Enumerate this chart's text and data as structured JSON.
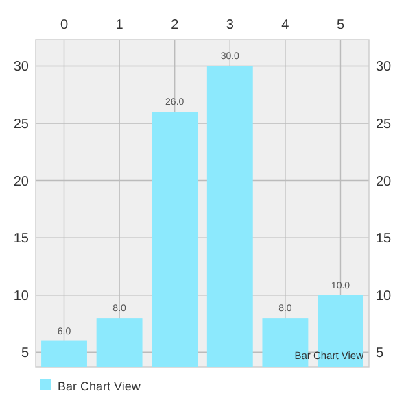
{
  "chart_data": {
    "type": "bar",
    "categories": [
      "0",
      "1",
      "2",
      "3",
      "4",
      "5"
    ],
    "series": [
      {
        "name": "Bar Chart View",
        "color": "#8ce9fd",
        "values": [
          6,
          8,
          26,
          30,
          8,
          10
        ],
        "value_labels": [
          "6.0",
          "8.0",
          "26.0",
          "30.0",
          "8.0",
          "10.0"
        ]
      }
    ],
    "ylim": [
      3.7,
      32.3
    ],
    "yticks": [
      5,
      10,
      15,
      20,
      25,
      30
    ],
    "y2lim": [
      3.7,
      32.3
    ],
    "y2ticks": [
      5,
      10,
      15,
      20,
      25,
      30
    ],
    "grid": true,
    "legend": "bottom left",
    "annotations": [
      "Bar Chart View"
    ]
  }
}
